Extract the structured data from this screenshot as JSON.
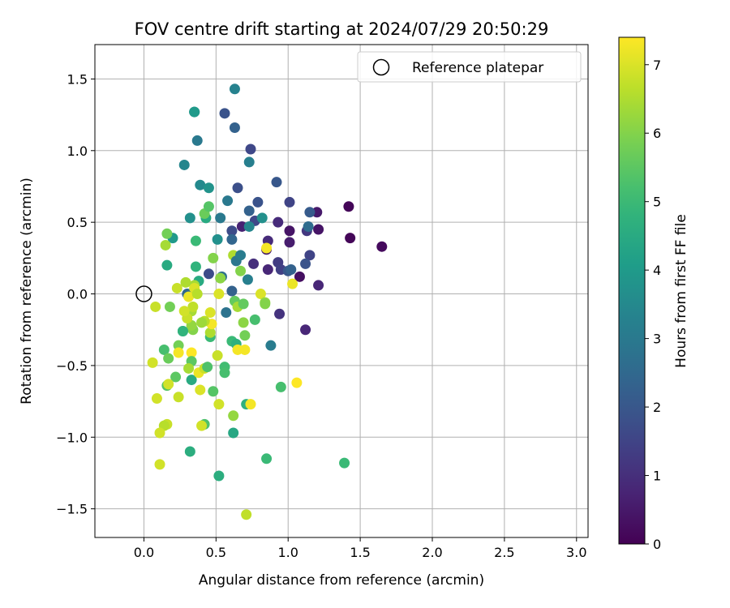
{
  "chart_data": {
    "type": "scatter",
    "title": "FOV centre drift starting at 2024/07/29 20:50:29",
    "xlabel": "Angular distance from reference (arcmin)",
    "ylabel": "Rotation from reference (arcmin)",
    "xlim": [
      -0.34,
      3.08
    ],
    "ylim": [
      -1.7,
      1.74
    ],
    "xticks": [
      0.0,
      0.5,
      1.0,
      1.5,
      2.0,
      2.5,
      3.0
    ],
    "xtick_labels": [
      "0.0",
      "0.5",
      "1.0",
      "1.5",
      "2.0",
      "2.5",
      "3.0"
    ],
    "yticks": [
      -1.5,
      -1.0,
      -0.5,
      0.0,
      0.5,
      1.0,
      1.5
    ],
    "ytick_labels": [
      "−1.5",
      "−1.0",
      "−0.5",
      "0.0",
      "0.5",
      "1.0",
      "1.5"
    ],
    "grid": true,
    "legend": {
      "position": "top-right",
      "entries": [
        "Reference platepar"
      ]
    },
    "reference_point": {
      "x": 0.0,
      "y": 0.0
    },
    "colorbar": {
      "label": "Hours from first FF file",
      "range": [
        0,
        7.4
      ],
      "ticks": [
        0,
        1,
        2,
        3,
        4,
        5,
        6,
        7
      ],
      "tick_labels": [
        "0",
        "1",
        "2",
        "3",
        "4",
        "5",
        "6",
        "7"
      ],
      "colormap": "viridis"
    },
    "points": [
      {
        "x": 1.42,
        "y": 0.61,
        "c": 0.1
      },
      {
        "x": 1.43,
        "y": 0.39,
        "c": 0.1
      },
      {
        "x": 1.65,
        "y": 0.33,
        "c": 0.2
      },
      {
        "x": 1.21,
        "y": 0.45,
        "c": 0.4
      },
      {
        "x": 1.2,
        "y": 0.57,
        "c": 0.5
      },
      {
        "x": 1.08,
        "y": 0.12,
        "c": 0.3
      },
      {
        "x": 1.01,
        "y": 0.44,
        "c": 0.4
      },
      {
        "x": 1.01,
        "y": 0.36,
        "c": 0.6
      },
      {
        "x": 1.21,
        "y": 0.06,
        "c": 0.8
      },
      {
        "x": 1.12,
        "y": -0.25,
        "c": 0.8
      },
      {
        "x": 0.93,
        "y": 0.5,
        "c": 0.9
      },
      {
        "x": 0.94,
        "y": -0.14,
        "c": 1.1
      },
      {
        "x": 0.86,
        "y": 0.37,
        "c": 0.9
      },
      {
        "x": 0.86,
        "y": 0.17,
        "c": 0.8
      },
      {
        "x": 0.85,
        "y": 0.31,
        "c": 0.6
      },
      {
        "x": 0.68,
        "y": 0.47,
        "c": 0.7
      },
      {
        "x": 0.76,
        "y": 0.21,
        "c": 1.0
      },
      {
        "x": 0.93,
        "y": 0.22,
        "c": 1.3
      },
      {
        "x": 0.95,
        "y": 0.17,
        "c": 1.4
      },
      {
        "x": 1.13,
        "y": 0.44,
        "c": 1.2
      },
      {
        "x": 1.15,
        "y": 0.27,
        "c": 1.5
      },
      {
        "x": 1.12,
        "y": 0.21,
        "c": 1.9
      },
      {
        "x": 1.0,
        "y": 0.16,
        "c": 2.0
      },
      {
        "x": 1.02,
        "y": 0.17,
        "c": 2.3
      },
      {
        "x": 1.01,
        "y": 0.64,
        "c": 1.5
      },
      {
        "x": 1.15,
        "y": 0.57,
        "c": 2.1
      },
      {
        "x": 1.14,
        "y": 0.47,
        "c": 2.6
      },
      {
        "x": 0.92,
        "y": 0.78,
        "c": 2.0
      },
      {
        "x": 0.74,
        "y": 1.01,
        "c": 1.6
      },
      {
        "x": 0.73,
        "y": 0.92,
        "c": 3.2
      },
      {
        "x": 0.63,
        "y": 1.16,
        "c": 2.3
      },
      {
        "x": 0.56,
        "y": 1.26,
        "c": 1.9
      },
      {
        "x": 0.63,
        "y": 1.43,
        "c": 3.3
      },
      {
        "x": 0.35,
        "y": 1.27,
        "c": 3.6
      },
      {
        "x": 0.35,
        "y": 1.27,
        "c": 4.0
      },
      {
        "x": 0.37,
        "y": 1.07,
        "c": 3.0
      },
      {
        "x": 0.28,
        "y": 0.9,
        "c": 3.4
      },
      {
        "x": 0.39,
        "y": 0.76,
        "c": 3.5
      },
      {
        "x": 0.45,
        "y": 0.74,
        "c": 3.8
      },
      {
        "x": 0.65,
        "y": 0.74,
        "c": 1.8
      },
      {
        "x": 0.58,
        "y": 0.65,
        "c": 3.0
      },
      {
        "x": 0.79,
        "y": 0.64,
        "c": 1.9
      },
      {
        "x": 0.73,
        "y": 0.58,
        "c": 2.3
      },
      {
        "x": 0.77,
        "y": 0.51,
        "c": 1.6
      },
      {
        "x": 0.73,
        "y": 0.47,
        "c": 3.4
      },
      {
        "x": 0.82,
        "y": 0.53,
        "c": 3.7
      },
      {
        "x": 0.61,
        "y": 0.44,
        "c": 1.7
      },
      {
        "x": 0.61,
        "y": 0.38,
        "c": 2.4
      },
      {
        "x": 0.53,
        "y": 0.53,
        "c": 3.0
      },
      {
        "x": 0.51,
        "y": 0.38,
        "c": 3.7
      },
      {
        "x": 0.43,
        "y": 0.53,
        "c": 4.5
      },
      {
        "x": 0.32,
        "y": 0.53,
        "c": 3.7
      },
      {
        "x": 0.42,
        "y": 0.56,
        "c": 5.7
      },
      {
        "x": 0.45,
        "y": 0.61,
        "c": 5.4
      },
      {
        "x": 0.36,
        "y": 0.37,
        "c": 5.0
      },
      {
        "x": 0.2,
        "y": 0.39,
        "c": 4.0
      },
      {
        "x": 0.16,
        "y": 0.42,
        "c": 5.8
      },
      {
        "x": 0.15,
        "y": 0.34,
        "c": 6.4
      },
      {
        "x": 0.16,
        "y": 0.2,
        "c": 4.5
      },
      {
        "x": 0.36,
        "y": 0.19,
        "c": 4.8
      },
      {
        "x": 0.38,
        "y": 0.09,
        "c": 4.5
      },
      {
        "x": 0.48,
        "y": 0.25,
        "c": 6.0
      },
      {
        "x": 0.45,
        "y": 0.14,
        "c": 1.7
      },
      {
        "x": 0.54,
        "y": 0.12,
        "c": 2.7
      },
      {
        "x": 0.53,
        "y": 0.11,
        "c": 6.1
      },
      {
        "x": 0.62,
        "y": 0.27,
        "c": 6.5
      },
      {
        "x": 0.64,
        "y": 0.23,
        "c": 2.9
      },
      {
        "x": 0.67,
        "y": 0.27,
        "c": 3.1
      },
      {
        "x": 0.67,
        "y": 0.16,
        "c": 6.0
      },
      {
        "x": 0.72,
        "y": 0.1,
        "c": 3.2
      },
      {
        "x": 0.61,
        "y": 0.02,
        "c": 2.3
      },
      {
        "x": 0.57,
        "y": -0.13,
        "c": 2.8
      },
      {
        "x": 0.63,
        "y": -0.05,
        "c": 5.6
      },
      {
        "x": 0.65,
        "y": -0.09,
        "c": 6.4
      },
      {
        "x": 0.69,
        "y": -0.07,
        "c": 5.6
      },
      {
        "x": 0.81,
        "y": 0.0,
        "c": 7.0
      },
      {
        "x": 0.84,
        "y": -0.06,
        "c": 6.2
      },
      {
        "x": 0.84,
        "y": -0.07,
        "c": 6.0
      },
      {
        "x": 0.85,
        "y": 0.32,
        "c": 7.3
      },
      {
        "x": 1.03,
        "y": 0.07,
        "c": 7.2
      },
      {
        "x": 0.77,
        "y": -0.18,
        "c": 5.2
      },
      {
        "x": 0.69,
        "y": -0.2,
        "c": 6.1
      },
      {
        "x": 0.7,
        "y": -0.29,
        "c": 5.8
      },
      {
        "x": 0.88,
        "y": -0.36,
        "c": 3.1
      },
      {
        "x": 0.61,
        "y": -0.33,
        "c": 5.0
      },
      {
        "x": 0.64,
        "y": -0.35,
        "c": 4.7
      },
      {
        "x": 0.65,
        "y": -0.39,
        "c": 7.3
      },
      {
        "x": 0.7,
        "y": -0.39,
        "c": 7.3
      },
      {
        "x": 0.56,
        "y": -0.51,
        "c": 5.1
      },
      {
        "x": 0.56,
        "y": -0.55,
        "c": 5.2
      },
      {
        "x": 0.51,
        "y": -0.43,
        "c": 6.8
      },
      {
        "x": 0.46,
        "y": -0.3,
        "c": 5.0
      },
      {
        "x": 0.46,
        "y": -0.27,
        "c": 6.5
      },
      {
        "x": 0.47,
        "y": -0.21,
        "c": 7.3
      },
      {
        "x": 0.46,
        "y": -0.13,
        "c": 7.0
      },
      {
        "x": 0.42,
        "y": -0.19,
        "c": 6.6
      },
      {
        "x": 0.4,
        "y": -0.2,
        "c": 6.3
      },
      {
        "x": 0.34,
        "y": -0.25,
        "c": 6.0
      },
      {
        "x": 0.33,
        "y": -0.22,
        "c": 6.2
      },
      {
        "x": 0.33,
        "y": -0.12,
        "c": 6.4
      },
      {
        "x": 0.34,
        "y": -0.09,
        "c": 6.7
      },
      {
        "x": 0.3,
        "y": -0.17,
        "c": 6.8
      },
      {
        "x": 0.28,
        "y": -0.12,
        "c": 6.9
      },
      {
        "x": 0.27,
        "y": -0.26,
        "c": 4.0
      },
      {
        "x": 0.27,
        "y": -0.26,
        "c": 4.8
      },
      {
        "x": 0.24,
        "y": -0.36,
        "c": 5.8
      },
      {
        "x": 0.24,
        "y": -0.41,
        "c": 7.3
      },
      {
        "x": 0.33,
        "y": -0.41,
        "c": 7.4
      },
      {
        "x": 0.33,
        "y": -0.47,
        "c": 5.5
      },
      {
        "x": 0.31,
        "y": -0.52,
        "c": 6.4
      },
      {
        "x": 0.18,
        "y": -0.09,
        "c": 5.8
      },
      {
        "x": 0.08,
        "y": -0.09,
        "c": 6.8
      },
      {
        "x": 0.23,
        "y": 0.04,
        "c": 6.8
      },
      {
        "x": 0.29,
        "y": 0.08,
        "c": 6.5
      },
      {
        "x": 0.3,
        "y": 0.0,
        "c": 2.5
      },
      {
        "x": 0.31,
        "y": -0.02,
        "c": 7.2
      },
      {
        "x": 0.35,
        "y": 0.06,
        "c": 6.4
      },
      {
        "x": 0.35,
        "y": 0.04,
        "c": 7.0
      },
      {
        "x": 0.37,
        "y": 0.0,
        "c": 6.6
      },
      {
        "x": 0.52,
        "y": 0.0,
        "c": 7.0
      },
      {
        "x": 0.14,
        "y": -0.39,
        "c": 5.2
      },
      {
        "x": 0.17,
        "y": -0.45,
        "c": 5.7
      },
      {
        "x": 0.06,
        "y": -0.48,
        "c": 6.9
      },
      {
        "x": 0.22,
        "y": -0.58,
        "c": 5.5
      },
      {
        "x": 0.16,
        "y": -0.64,
        "c": 5.4
      },
      {
        "x": 0.17,
        "y": -0.63,
        "c": 6.9
      },
      {
        "x": 0.33,
        "y": -0.6,
        "c": 4.5
      },
      {
        "x": 0.38,
        "y": -0.55,
        "c": 7.2
      },
      {
        "x": 0.42,
        "y": -0.52,
        "c": 6.8
      },
      {
        "x": 0.44,
        "y": -0.51,
        "c": 5.3
      },
      {
        "x": 0.39,
        "y": -0.67,
        "c": 7.0
      },
      {
        "x": 0.48,
        "y": -0.68,
        "c": 5.4
      },
      {
        "x": 0.24,
        "y": -0.72,
        "c": 6.8
      },
      {
        "x": 0.09,
        "y": -0.73,
        "c": 6.9
      },
      {
        "x": 0.52,
        "y": -0.77,
        "c": 6.9
      },
      {
        "x": 0.71,
        "y": -0.77,
        "c": 4.7
      },
      {
        "x": 0.74,
        "y": -0.77,
        "c": 7.3
      },
      {
        "x": 0.95,
        "y": -0.65,
        "c": 5.2
      },
      {
        "x": 1.06,
        "y": -0.62,
        "c": 7.4
      },
      {
        "x": 0.62,
        "y": -0.85,
        "c": 6.2
      },
      {
        "x": 0.42,
        "y": -0.91,
        "c": 5.3
      },
      {
        "x": 0.4,
        "y": -0.92,
        "c": 6.9
      },
      {
        "x": 0.16,
        "y": -0.91,
        "c": 6.8
      },
      {
        "x": 0.14,
        "y": -0.92,
        "c": 6.6
      },
      {
        "x": 0.11,
        "y": -0.97,
        "c": 6.9
      },
      {
        "x": 0.62,
        "y": -0.97,
        "c": 4.4
      },
      {
        "x": 0.32,
        "y": -1.1,
        "c": 4.6
      },
      {
        "x": 0.85,
        "y": -1.15,
        "c": 5.0
      },
      {
        "x": 0.11,
        "y": -1.19,
        "c": 6.9
      },
      {
        "x": 1.39,
        "y": -1.18,
        "c": 5.0
      },
      {
        "x": 0.52,
        "y": -1.27,
        "c": 4.6
      },
      {
        "x": 0.71,
        "y": -1.54,
        "c": 6.7
      }
    ]
  }
}
